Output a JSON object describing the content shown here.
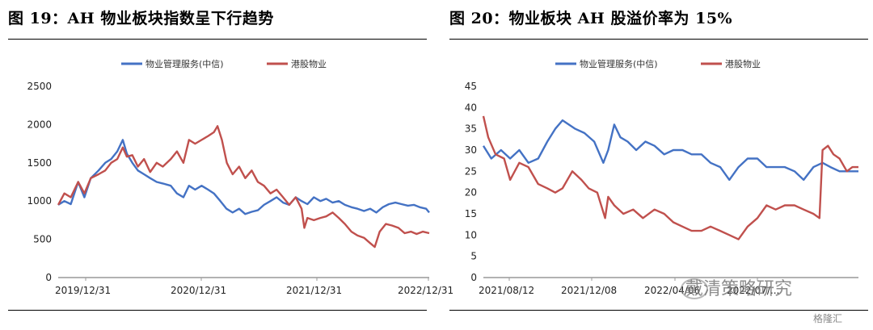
{
  "left_title": "图 19：AH 物业板块指数呈下行趋势",
  "right_title": "图 20：物业板块 AH 股溢价率为 15%",
  "watermark": "戴清策略研究",
  "source_tag": "格隆汇",
  "colors": {
    "blue": "#4472C4",
    "red": "#C0504D",
    "axis": "#999999",
    "rule": "#000000"
  },
  "chart_data": [
    {
      "type": "line",
      "legend_placement": "top-center",
      "grid": false,
      "ylim": [
        0,
        2500
      ],
      "yticks": [
        "0",
        "500",
        "1000",
        "1500",
        "2000",
        "2500"
      ],
      "xlim": [
        "2019-12-31",
        "2023-04-20"
      ],
      "xticks": [
        "2019/12/31",
        "2020/12/31",
        "2021/12/31",
        "2022/12/31"
      ],
      "series": [
        {
          "name": "物业管理服务(中信)",
          "color": "#4472C4",
          "points": [
            [
              "2019-12-31",
              950
            ],
            [
              "2020-01-20",
              1000
            ],
            [
              "2020-02-10",
              960
            ],
            [
              "2020-03-05",
              1250
            ],
            [
              "2020-03-25",
              1050
            ],
            [
              "2020-04-15",
              1300
            ],
            [
              "2020-05-10",
              1400
            ],
            [
              "2020-06-01",
              1500
            ],
            [
              "2020-06-20",
              1550
            ],
            [
              "2020-07-10",
              1650
            ],
            [
              "2020-07-28",
              1800
            ],
            [
              "2020-08-10",
              1620
            ],
            [
              "2020-08-28",
              1500
            ],
            [
              "2020-09-15",
              1400
            ],
            [
              "2020-10-05",
              1350
            ],
            [
              "2020-10-25",
              1300
            ],
            [
              "2020-11-15",
              1250
            ],
            [
              "2020-12-05",
              1230
            ],
            [
              "2020-12-31",
              1200
            ],
            [
              "2021-01-20",
              1100
            ],
            [
              "2021-02-10",
              1050
            ],
            [
              "2021-02-28",
              1200
            ],
            [
              "2021-03-20",
              1150
            ],
            [
              "2021-04-10",
              1200
            ],
            [
              "2021-05-01",
              1150
            ],
            [
              "2021-05-20",
              1100
            ],
            [
              "2021-06-10",
              1000
            ],
            [
              "2021-06-30",
              900
            ],
            [
              "2021-07-20",
              850
            ],
            [
              "2021-08-10",
              900
            ],
            [
              "2021-08-30",
              830
            ],
            [
              "2021-09-20",
              860
            ],
            [
              "2021-10-10",
              880
            ],
            [
              "2021-10-30",
              950
            ],
            [
              "2021-11-20",
              1000
            ],
            [
              "2021-12-10",
              1050
            ],
            [
              "2021-12-31",
              980
            ],
            [
              "2022-01-20",
              950
            ],
            [
              "2022-02-10",
              1050
            ],
            [
              "2022-03-01",
              1000
            ],
            [
              "2022-03-20",
              960
            ],
            [
              "2022-04-10",
              1050
            ],
            [
              "2022-05-01",
              1000
            ],
            [
              "2022-05-20",
              1030
            ],
            [
              "2022-06-10",
              980
            ],
            [
              "2022-06-30",
              1000
            ],
            [
              "2022-07-20",
              950
            ],
            [
              "2022-08-10",
              920
            ],
            [
              "2022-08-30",
              900
            ],
            [
              "2022-09-20",
              870
            ],
            [
              "2022-10-10",
              900
            ],
            [
              "2022-10-30",
              850
            ],
            [
              "2022-11-20",
              920
            ],
            [
              "2022-12-10",
              960
            ],
            [
              "2022-12-31",
              980
            ],
            [
              "2023-01-20",
              960
            ],
            [
              "2023-02-10",
              940
            ],
            [
              "2023-03-01",
              950
            ],
            [
              "2023-03-20",
              920
            ],
            [
              "2023-04-10",
              900
            ],
            [
              "2023-04-20",
              850
            ]
          ]
        },
        {
          "name": "港股物业",
          "color": "#C0504D",
          "points": [
            [
              "2019-12-31",
              950
            ],
            [
              "2020-01-20",
              1100
            ],
            [
              "2020-02-10",
              1050
            ],
            [
              "2020-03-05",
              1250
            ],
            [
              "2020-03-25",
              1100
            ],
            [
              "2020-04-15",
              1300
            ],
            [
              "2020-05-10",
              1350
            ],
            [
              "2020-06-01",
              1400
            ],
            [
              "2020-06-20",
              1500
            ],
            [
              "2020-07-10",
              1550
            ],
            [
              "2020-07-28",
              1700
            ],
            [
              "2020-08-10",
              1580
            ],
            [
              "2020-08-28",
              1600
            ],
            [
              "2020-09-15",
              1450
            ],
            [
              "2020-10-05",
              1550
            ],
            [
              "2020-10-25",
              1380
            ],
            [
              "2020-11-15",
              1500
            ],
            [
              "2020-12-05",
              1450
            ],
            [
              "2020-12-31",
              1550
            ],
            [
              "2021-01-20",
              1650
            ],
            [
              "2021-02-10",
              1500
            ],
            [
              "2021-02-28",
              1800
            ],
            [
              "2021-03-20",
              1750
            ],
            [
              "2021-04-10",
              1800
            ],
            [
              "2021-05-01",
              1850
            ],
            [
              "2021-05-20",
              1900
            ],
            [
              "2021-06-01",
              1980
            ],
            [
              "2021-06-15",
              1800
            ],
            [
              "2021-07-01",
              1500
            ],
            [
              "2021-07-20",
              1350
            ],
            [
              "2021-08-10",
              1450
            ],
            [
              "2021-08-30",
              1300
            ],
            [
              "2021-09-20",
              1400
            ],
            [
              "2021-10-10",
              1250
            ],
            [
              "2021-10-30",
              1200
            ],
            [
              "2021-11-20",
              1100
            ],
            [
              "2021-12-10",
              1150
            ],
            [
              "2021-12-31",
              1050
            ],
            [
              "2022-01-20",
              950
            ],
            [
              "2022-02-10",
              1050
            ],
            [
              "2022-03-01",
              900
            ],
            [
              "2022-03-10",
              650
            ],
            [
              "2022-03-20",
              780
            ],
            [
              "2022-04-10",
              750
            ],
            [
              "2022-05-01",
              780
            ],
            [
              "2022-05-20",
              800
            ],
            [
              "2022-06-10",
              850
            ],
            [
              "2022-06-30",
              780
            ],
            [
              "2022-07-20",
              700
            ],
            [
              "2022-08-10",
              600
            ],
            [
              "2022-08-30",
              550
            ],
            [
              "2022-09-20",
              520
            ],
            [
              "2022-10-10",
              450
            ],
            [
              "2022-10-25",
              400
            ],
            [
              "2022-11-10",
              600
            ],
            [
              "2022-11-30",
              700
            ],
            [
              "2022-12-20",
              680
            ],
            [
              "2023-01-10",
              650
            ],
            [
              "2023-01-30",
              580
            ],
            [
              "2023-02-20",
              600
            ],
            [
              "2023-03-10",
              570
            ],
            [
              "2023-03-30",
              600
            ],
            [
              "2023-04-20",
              580
            ]
          ]
        }
      ]
    },
    {
      "type": "line",
      "legend_placement": "top-center",
      "grid": false,
      "ylim": [
        0,
        45
      ],
      "yticks": [
        "0",
        "5",
        "10",
        "15",
        "20",
        "25",
        "30",
        "35",
        "40",
        "45"
      ],
      "xlim": [
        "2021-08-12",
        "2023-04-20"
      ],
      "xticks": [
        "2021/08/12",
        "2021/12/08",
        "2022/04/06",
        "2022/07/..."
      ],
      "series": [
        {
          "name": "物业管理服务(中信)",
          "color": "#4472C4",
          "points": [
            [
              "2021-08-12",
              31
            ],
            [
              "2021-08-25",
              28
            ],
            [
              "2021-09-10",
              30
            ],
            [
              "2021-09-25",
              28
            ],
            [
              "2021-10-10",
              30
            ],
            [
              "2021-10-25",
              27
            ],
            [
              "2021-11-10",
              28
            ],
            [
              "2021-11-25",
              32
            ],
            [
              "2021-12-08",
              35
            ],
            [
              "2021-12-20",
              37
            ],
            [
              "2022-01-10",
              35
            ],
            [
              "2022-01-25",
              34
            ],
            [
              "2022-02-10",
              32
            ],
            [
              "2022-02-25",
              27
            ],
            [
              "2022-03-05",
              30
            ],
            [
              "2022-03-15",
              36
            ],
            [
              "2022-03-25",
              33
            ],
            [
              "2022-04-06",
              32
            ],
            [
              "2022-04-20",
              30
            ],
            [
              "2022-05-05",
              32
            ],
            [
              "2022-05-20",
              31
            ],
            [
              "2022-06-05",
              29
            ],
            [
              "2022-06-20",
              30
            ],
            [
              "2022-07-05",
              30
            ],
            [
              "2022-07-20",
              29
            ],
            [
              "2022-08-05",
              29
            ],
            [
              "2022-08-20",
              27
            ],
            [
              "2022-09-05",
              26
            ],
            [
              "2022-09-20",
              23
            ],
            [
              "2022-10-05",
              26
            ],
            [
              "2022-10-20",
              28
            ],
            [
              "2022-11-05",
              28
            ],
            [
              "2022-11-20",
              26
            ],
            [
              "2022-12-05",
              26
            ],
            [
              "2022-12-20",
              26
            ],
            [
              "2023-01-05",
              25
            ],
            [
              "2023-01-20",
              23
            ],
            [
              "2023-02-05",
              26
            ],
            [
              "2023-02-20",
              27
            ],
            [
              "2023-03-05",
              26
            ],
            [
              "2023-03-20",
              25
            ],
            [
              "2023-04-05",
              25
            ],
            [
              "2023-04-20",
              25
            ]
          ]
        },
        {
          "name": "港股物业",
          "color": "#C0504D",
          "points": [
            [
              "2021-08-12",
              38
            ],
            [
              "2021-08-20",
              33
            ],
            [
              "2021-09-01",
              29
            ],
            [
              "2021-09-15",
              28
            ],
            [
              "2021-09-25",
              23
            ],
            [
              "2021-10-10",
              27
            ],
            [
              "2021-10-25",
              26
            ],
            [
              "2021-11-10",
              22
            ],
            [
              "2021-11-25",
              21
            ],
            [
              "2021-12-08",
              20
            ],
            [
              "2021-12-20",
              21
            ],
            [
              "2022-01-05",
              25
            ],
            [
              "2022-01-20",
              23
            ],
            [
              "2022-02-01",
              21
            ],
            [
              "2022-02-15",
              20
            ],
            [
              "2022-02-28",
              14
            ],
            [
              "2022-03-05",
              19
            ],
            [
              "2022-03-15",
              17
            ],
            [
              "2022-03-30",
              15
            ],
            [
              "2022-04-15",
              16
            ],
            [
              "2022-05-01",
              14
            ],
            [
              "2022-05-20",
              16
            ],
            [
              "2022-06-05",
              15
            ],
            [
              "2022-06-20",
              13
            ],
            [
              "2022-07-05",
              12
            ],
            [
              "2022-07-20",
              11
            ],
            [
              "2022-08-05",
              11
            ],
            [
              "2022-08-20",
              12
            ],
            [
              "2022-09-05",
              11
            ],
            [
              "2022-09-20",
              10
            ],
            [
              "2022-10-05",
              9
            ],
            [
              "2022-10-20",
              12
            ],
            [
              "2022-11-05",
              14
            ],
            [
              "2022-11-20",
              17
            ],
            [
              "2022-12-05",
              16
            ],
            [
              "2022-12-20",
              17
            ],
            [
              "2023-01-05",
              17
            ],
            [
              "2023-01-20",
              16
            ],
            [
              "2023-02-05",
              15
            ],
            [
              "2023-02-15",
              14
            ],
            [
              "2023-02-20",
              30
            ],
            [
              "2023-03-01",
              31
            ],
            [
              "2023-03-10",
              29
            ],
            [
              "2023-03-20",
              28
            ],
            [
              "2023-04-01",
              25
            ],
            [
              "2023-04-10",
              26
            ],
            [
              "2023-04-20",
              26
            ]
          ]
        }
      ]
    }
  ]
}
